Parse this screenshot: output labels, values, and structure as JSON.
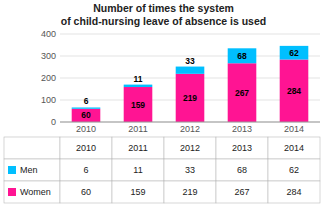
{
  "chart_data": {
    "type": "bar",
    "stacked": true,
    "title": "Number of times the system\nof child-nursing leave of absence is used",
    "categories": [
      "2010",
      "2011",
      "2012",
      "2013",
      "2014"
    ],
    "series": [
      {
        "name": "Women",
        "color": "#FF1493",
        "values": [
          60,
          159,
          219,
          267,
          284
        ]
      },
      {
        "name": "Men",
        "color": "#00BFFF",
        "values": [
          6,
          11,
          33,
          68,
          62
        ]
      }
    ],
    "ylim": [
      0,
      400
    ],
    "yticks": [
      0,
      100,
      200,
      300,
      400
    ],
    "grid": true,
    "data_labels": true
  }
}
